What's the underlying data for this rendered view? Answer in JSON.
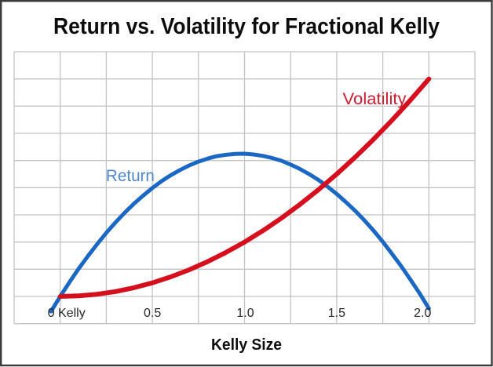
{
  "chart_data": {
    "type": "line",
    "title": "Return vs. Volatility for Fractional Kelly",
    "xlabel": "Kelly Size",
    "ylabel": "",
    "xlim": [
      -0.25,
      2.25
    ],
    "ylim": [
      0,
      9
    ],
    "x_gridline_step": 0.25,
    "y_gridline_step": 1,
    "y_axis_labeled": false,
    "grid": true,
    "legend_position": "inline-annotations",
    "x_ticks": [
      {
        "value": 0,
        "label": "0 Kelly"
      },
      {
        "value": 0.5,
        "label": "0.5"
      },
      {
        "value": 1.0,
        "label": "1.0"
      },
      {
        "value": 1.5,
        "label": "1.5"
      },
      {
        "value": 2.0,
        "label": "2.0"
      }
    ],
    "series": [
      {
        "name": "Return",
        "color": "#1a67c4",
        "label_color": "#4f87c7",
        "annotation": {
          "x": 0.38,
          "y": 4.44
        },
        "points": [
          [
            -0.05,
            -0.55
          ],
          [
            0,
            0
          ],
          [
            0.05,
            0.52
          ],
          [
            0.1,
            1.02
          ],
          [
            0.15,
            1.48
          ],
          [
            0.2,
            1.92
          ],
          [
            0.25,
            2.34
          ],
          [
            0.3,
            2.72
          ],
          [
            0.35,
            3.08
          ],
          [
            0.4,
            3.41
          ],
          [
            0.45,
            3.71
          ],
          [
            0.5,
            3.99
          ],
          [
            0.55,
            4.24
          ],
          [
            0.6,
            4.46
          ],
          [
            0.65,
            4.65
          ],
          [
            0.7,
            4.82
          ],
          [
            0.75,
            4.96
          ],
          [
            0.8,
            5.07
          ],
          [
            0.85,
            5.16
          ],
          [
            0.9,
            5.21
          ],
          [
            0.95,
            5.24
          ],
          [
            1.0,
            5.25
          ],
          [
            1.05,
            5.22
          ],
          [
            1.1,
            5.17
          ],
          [
            1.15,
            5.09
          ],
          [
            1.2,
            4.99
          ],
          [
            1.25,
            4.85
          ],
          [
            1.3,
            4.69
          ],
          [
            1.35,
            4.5
          ],
          [
            1.4,
            4.29
          ],
          [
            1.45,
            4.04
          ],
          [
            1.5,
            3.77
          ],
          [
            1.55,
            3.47
          ],
          [
            1.6,
            3.15
          ],
          [
            1.65,
            2.8
          ],
          [
            1.7,
            2.42
          ],
          [
            1.75,
            2.01
          ],
          [
            1.8,
            1.57
          ],
          [
            1.85,
            1.11
          ],
          [
            1.9,
            0.62
          ],
          [
            1.95,
            0.11
          ],
          [
            2.0,
            -0.44
          ]
        ]
      },
      {
        "name": "Volatility",
        "color": "#d60f1e",
        "label_color": "#cb2030",
        "annotation": {
          "x": 1.705,
          "y": 7.27
        },
        "points": [
          [
            0,
            0
          ],
          [
            0.1,
            0.02
          ],
          [
            0.2,
            0.08
          ],
          [
            0.3,
            0.18
          ],
          [
            0.4,
            0.32
          ],
          [
            0.5,
            0.5
          ],
          [
            0.6,
            0.72
          ],
          [
            0.7,
            0.98
          ],
          [
            0.8,
            1.28
          ],
          [
            0.9,
            1.62
          ],
          [
            1.0,
            2.0
          ],
          [
            1.1,
            2.42
          ],
          [
            1.2,
            2.88
          ],
          [
            1.3,
            3.38
          ],
          [
            1.4,
            3.92
          ],
          [
            1.5,
            4.5
          ],
          [
            1.6,
            5.12
          ],
          [
            1.7,
            5.78
          ],
          [
            1.8,
            6.48
          ],
          [
            1.9,
            7.22
          ],
          [
            2.0,
            8.0
          ]
        ]
      }
    ],
    "colors": {
      "background": "#ffffff",
      "grid": "#c4c4c4",
      "tick_label": "#262626",
      "title": "#0d0d0d",
      "border": "#3a3a3a"
    }
  }
}
